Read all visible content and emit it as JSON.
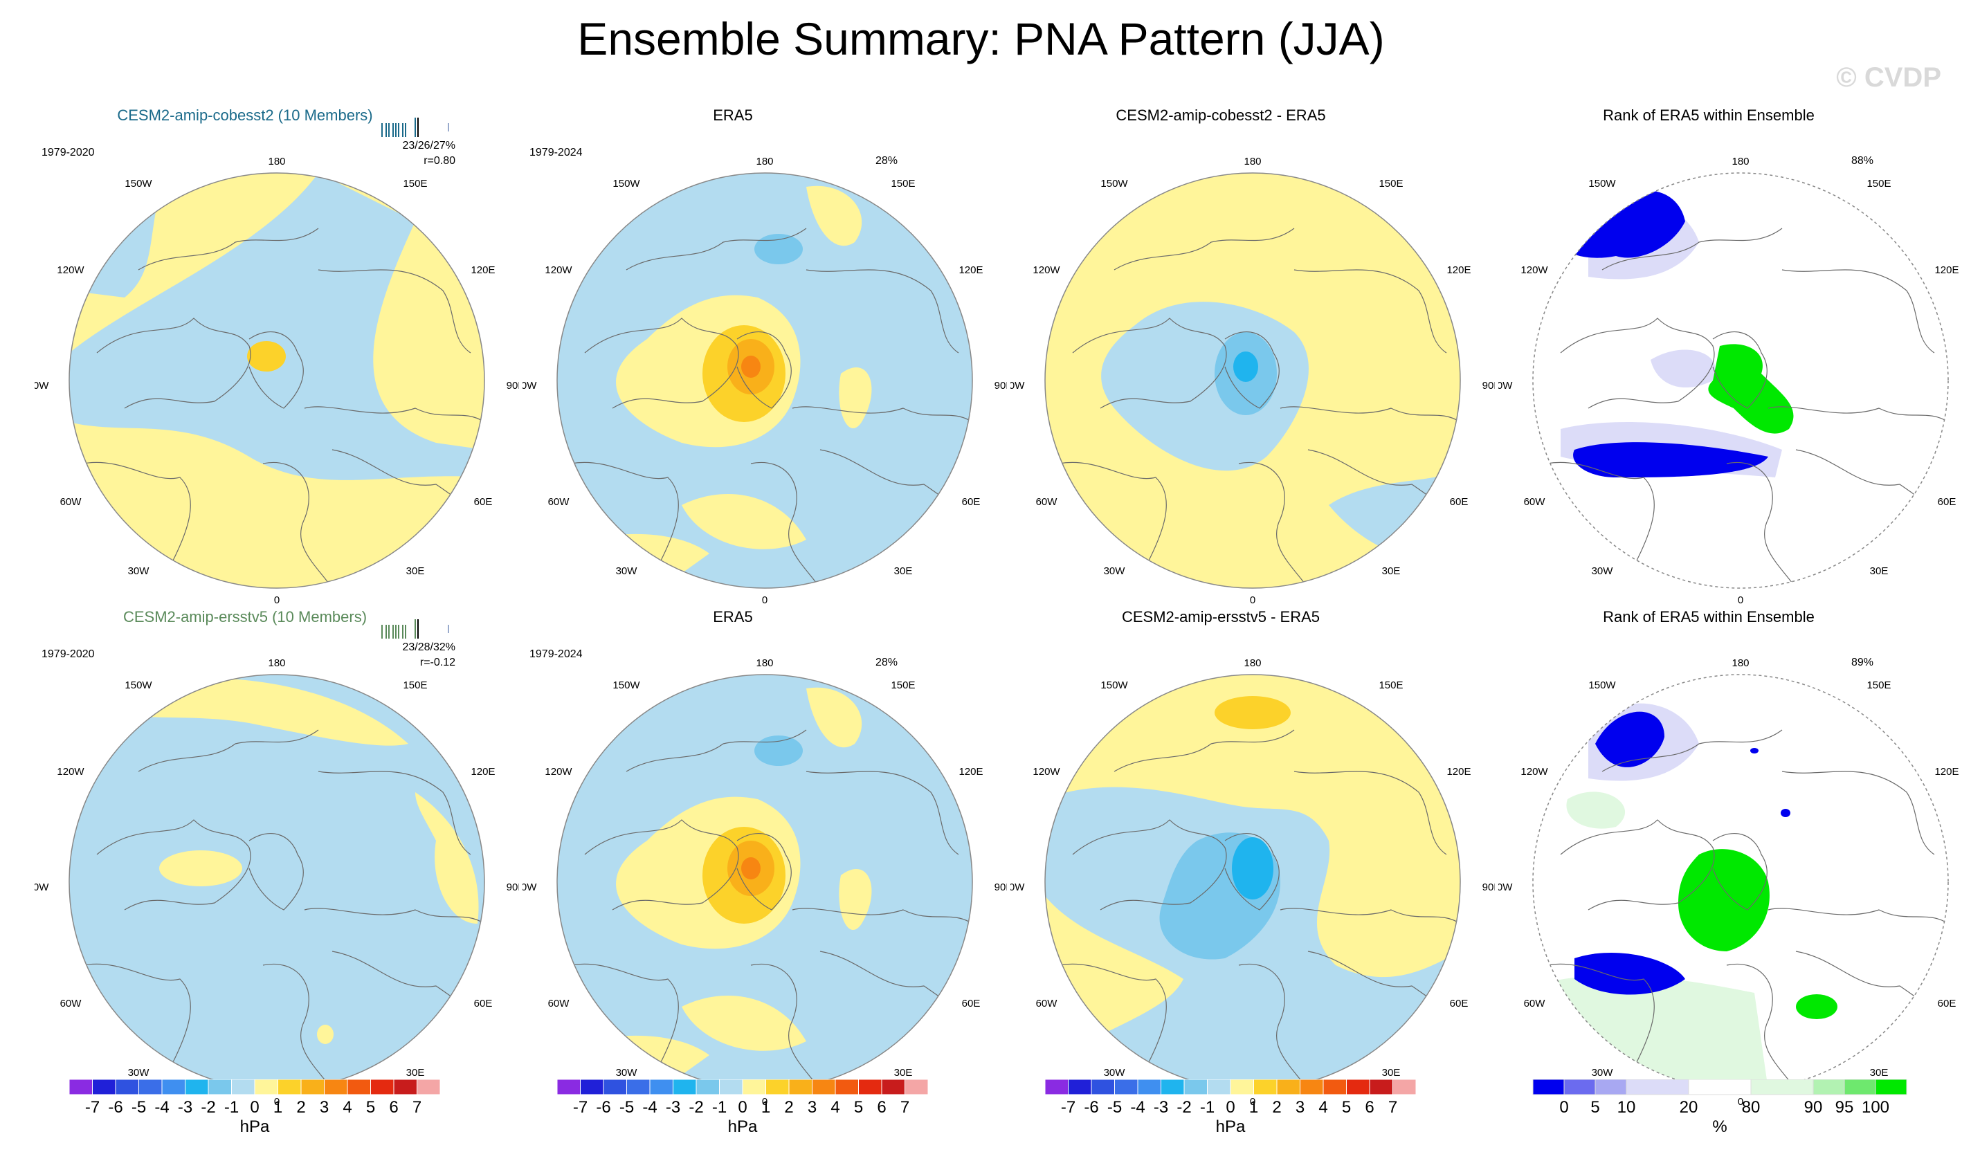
{
  "page": {
    "title": "Ensemble Summary: PNA Pattern (JJA)",
    "watermark": "© CVDP"
  },
  "geo_labels": [
    "180",
    "150W",
    "150E",
    "120W",
    "120E",
    "90W",
    "90E",
    "60W",
    "60E",
    "30W",
    "30E",
    "0"
  ],
  "panels": [
    {
      "title": "CESM2-amip-cobesst2 (10 Members)",
      "years": "1979-2020",
      "stat1": "23/26/27%",
      "stat2": "r=0.80",
      "pct": ""
    },
    {
      "title": "ERA5",
      "years": "1979-2024",
      "stat1": "",
      "stat2": "",
      "pct": "28%"
    },
    {
      "title": "CESM2-amip-cobesst2 - ERA5",
      "years": "",
      "stat1": "",
      "stat2": "",
      "pct": ""
    },
    {
      "title": "Rank of ERA5 within Ensemble",
      "years": "",
      "stat1": "",
      "stat2": "",
      "pct": "88%"
    },
    {
      "title": "CESM2-amip-ersstv5 (10 Members)",
      "years": "1979-2020",
      "stat1": "23/28/32%",
      "stat2": "r=-0.12",
      "pct": ""
    },
    {
      "title": "ERA5",
      "years": "1979-2024",
      "stat1": "",
      "stat2": "",
      "pct": "28%"
    },
    {
      "title": "CESM2-amip-ersstv5 - ERA5",
      "years": "",
      "stat1": "",
      "stat2": "",
      "pct": ""
    },
    {
      "title": "Rank of ERA5 within Ensemble",
      "years": "",
      "stat1": "",
      "stat2": "",
      "pct": "89%"
    }
  ],
  "colorbar_hpa": {
    "unit": "hPa",
    "labels": [
      "-7",
      "-6",
      "-5",
      "-4",
      "-3",
      "-2",
      "-1",
      "0",
      "1",
      "2",
      "3",
      "4",
      "5",
      "6",
      "7"
    ],
    "colors": [
      "#8a2be2",
      "#2020d8",
      "#2f52e0",
      "#3a6ee8",
      "#3f8ff0",
      "#1fb4ee",
      "#7ac8ec",
      "#b3dcf0",
      "#fff59a",
      "#fcd22a",
      "#f9b01a",
      "#f78612",
      "#f25a10",
      "#e42a10",
      "#c81c1c",
      "#f4a6a6"
    ]
  },
  "colorbar_rank": {
    "unit": "%",
    "labels": [
      "0",
      "5",
      "10",
      "20",
      "80",
      "90",
      "95",
      "100"
    ],
    "colors": [
      "#0000ee",
      "#6b6bef",
      "#a8a8f2",
      "#dcdcf8",
      "#ffffff",
      "#e0f8e0",
      "#b2f2b2",
      "#6ee86e",
      "#00e800"
    ]
  },
  "colors": {
    "yellow": "#fff59a",
    "lightblue": "#b3dcf0",
    "gold": "#fcd22a",
    "orange": "#f9b01a",
    "darkorange": "#f78612",
    "midblue": "#7ac8ec",
    "cyan": "#1fb4ee",
    "rankblue": "#0000ee",
    "rankgreen": "#00e800",
    "ranklav": "#dcdcf8",
    "rankpale": "#e0f8e0"
  }
}
